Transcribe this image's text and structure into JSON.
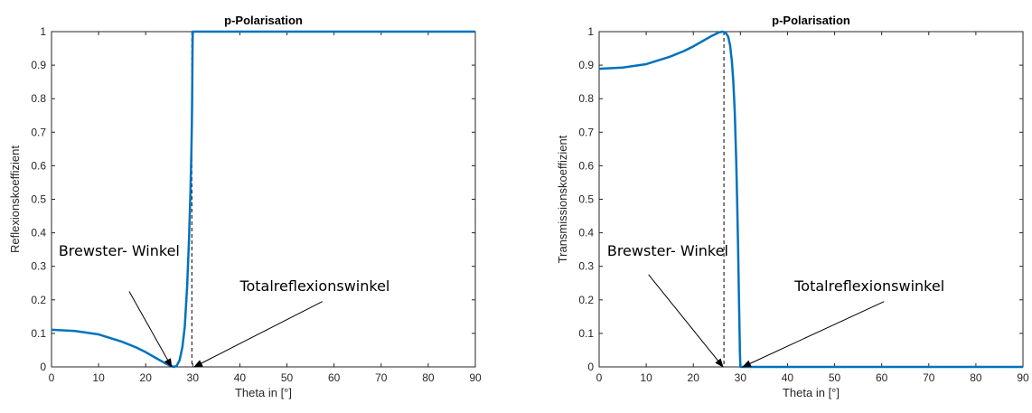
{
  "chart_data": [
    {
      "type": "line",
      "title": "p-Polarisation",
      "xlabel": "Theta in [°]",
      "ylabel": "Reflexionskoeffizient",
      "xlim": [
        0,
        90
      ],
      "ylim": [
        0,
        1
      ],
      "xticks": [
        "0",
        "10",
        "20",
        "30",
        "40",
        "50",
        "60",
        "70",
        "80",
        "90"
      ],
      "yticks": [
        "0",
        "0.1",
        "0.2",
        "0.3",
        "0.4",
        "0.5",
        "0.6",
        "0.7",
        "0.8",
        "0.9",
        "1"
      ],
      "grid": false,
      "series": [
        {
          "color": "#0072BD",
          "x": [
            0,
            5,
            10,
            15,
            18,
            20,
            22,
            23.5,
            24.5,
            25.5,
            26.1,
            26.6,
            27.2,
            27.8,
            28.3,
            28.8,
            29.2,
            29.5,
            29.7,
            29.8,
            29.85,
            29.9,
            29.93,
            29.96,
            30,
            40,
            50,
            60,
            70,
            80,
            90
          ],
          "y": [
            0.111,
            0.107,
            0.097,
            0.075,
            0.058,
            0.044,
            0.028,
            0.016,
            0.008,
            0.002,
            0.0,
            0.004,
            0.02,
            0.06,
            0.12,
            0.24,
            0.38,
            0.52,
            0.64,
            0.72,
            0.78,
            0.86,
            0.92,
            0.97,
            1.0,
            1.0,
            1.0,
            1.0,
            1.0,
            1.0,
            1.0
          ]
        }
      ],
      "reference_lines": [
        {
          "x": 29.8,
          "style": "dashed"
        }
      ],
      "annotations": [
        {
          "text": "Brewster- Winkel",
          "text_at": [
            1.5,
            0.332
          ],
          "arrow_from": [
            16.5,
            0.225
          ],
          "arrow_to": [
            25.5,
            0.0
          ]
        },
        {
          "text": "Totalreflexionswinkel",
          "text_at": [
            40,
            0.227
          ],
          "arrow_from": [
            57.5,
            0.195
          ],
          "arrow_to": [
            30.3,
            0.0
          ]
        }
      ]
    },
    {
      "type": "line",
      "title": "p-Polarisation",
      "xlabel": "Theta in [°]",
      "ylabel": "Transmissionskoeffizient",
      "xlim": [
        0,
        90
      ],
      "ylim": [
        0,
        1
      ],
      "xticks": [
        "0",
        "10",
        "20",
        "30",
        "40",
        "50",
        "60",
        "70",
        "80",
        "90"
      ],
      "yticks": [
        "0",
        "0.1",
        "0.2",
        "0.3",
        "0.4",
        "0.5",
        "0.6",
        "0.7",
        "0.8",
        "0.9",
        "1"
      ],
      "grid": false,
      "series": [
        {
          "color": "#0072BD",
          "x": [
            0,
            5,
            10,
            15,
            18,
            20,
            22,
            24,
            25.5,
            26.3,
            26.9,
            27.4,
            27.8,
            28.2,
            28.5,
            28.8,
            29.1,
            29.3,
            29.5,
            29.65,
            29.8,
            29.9,
            30,
            40,
            50,
            60,
            70,
            80,
            90
          ],
          "y": [
            0.889,
            0.893,
            0.903,
            0.925,
            0.942,
            0.956,
            0.972,
            0.988,
            0.998,
            1.0,
            0.996,
            0.985,
            0.96,
            0.91,
            0.85,
            0.76,
            0.62,
            0.5,
            0.36,
            0.24,
            0.12,
            0.04,
            0.0,
            0.0,
            0.0,
            0.0,
            0.0,
            0.0,
            0.0
          ]
        }
      ],
      "reference_lines": [
        {
          "x": 26.5,
          "style": "dashed"
        }
      ],
      "annotations": [
        {
          "text": "Brewster- Winkel",
          "text_at": [
            1.7,
            0.332
          ],
          "arrow_from": [
            10.5,
            0.275
          ],
          "arrow_to": [
            26.3,
            0.0
          ]
        },
        {
          "text": "Totalreflexionswinkel",
          "text_at": [
            41.5,
            0.227
          ],
          "arrow_from": [
            60.5,
            0.195
          ],
          "arrow_to": [
            30.5,
            0.0
          ]
        }
      ]
    }
  ]
}
